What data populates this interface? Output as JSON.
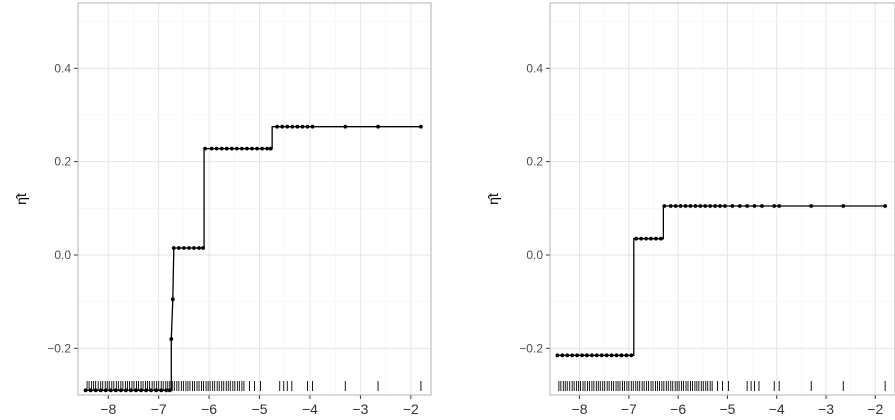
{
  "chart_data": [
    {
      "type": "line",
      "title": "",
      "xlabel": "",
      "ylabel": "η̂t",
      "xlim": [
        -8.6,
        -1.6
      ],
      "ylim": [
        -0.3,
        0.54
      ],
      "xticks": [
        -8,
        -7,
        -6,
        -5,
        -4,
        -3,
        -2
      ],
      "yticks": [
        -0.2,
        0.0,
        0.2,
        0.4
      ],
      "xtick_labels": [
        "−8",
        "−7",
        "−6",
        "−5",
        "−4",
        "−3",
        "−2"
      ],
      "ytick_labels": [
        "−0.2",
        "0.0",
        "0.2",
        "0.4"
      ],
      "grid": true,
      "series": [
        {
          "step_points": [
            {
              "x": -8.45,
              "y": -0.29
            },
            {
              "x": -6.75,
              "y": -0.29
            },
            {
              "x": -6.75,
              "y": -0.18
            },
            {
              "x": -6.72,
              "y": -0.095
            },
            {
              "x": -6.7,
              "y": 0.015
            },
            {
              "x": -6.1,
              "y": 0.015
            },
            {
              "x": -6.1,
              "y": 0.228
            },
            {
              "x": -4.75,
              "y": 0.228
            },
            {
              "x": -4.75,
              "y": 0.275
            },
            {
              "x": -1.8,
              "y": 0.275
            }
          ],
          "points": [
            {
              "x": -8.45,
              "y": -0.29
            },
            {
              "x": -8.35,
              "y": -0.29
            },
            {
              "x": -8.25,
              "y": -0.29
            },
            {
              "x": -8.15,
              "y": -0.29
            },
            {
              "x": -8.05,
              "y": -0.29
            },
            {
              "x": -7.95,
              "y": -0.29
            },
            {
              "x": -7.85,
              "y": -0.29
            },
            {
              "x": -7.75,
              "y": -0.29
            },
            {
              "x": -7.65,
              "y": -0.29
            },
            {
              "x": -7.55,
              "y": -0.29
            },
            {
              "x": -7.45,
              "y": -0.29
            },
            {
              "x": -7.35,
              "y": -0.29
            },
            {
              "x": -7.25,
              "y": -0.29
            },
            {
              "x": -7.15,
              "y": -0.29
            },
            {
              "x": -7.05,
              "y": -0.29
            },
            {
              "x": -6.95,
              "y": -0.29
            },
            {
              "x": -6.85,
              "y": -0.29
            },
            {
              "x": -6.78,
              "y": -0.29
            },
            {
              "x": -6.75,
              "y": -0.18
            },
            {
              "x": -6.72,
              "y": -0.095
            },
            {
              "x": -6.7,
              "y": 0.015
            },
            {
              "x": -6.6,
              "y": 0.015
            },
            {
              "x": -6.5,
              "y": 0.015
            },
            {
              "x": -6.4,
              "y": 0.015
            },
            {
              "x": -6.3,
              "y": 0.015
            },
            {
              "x": -6.2,
              "y": 0.015
            },
            {
              "x": -6.12,
              "y": 0.015
            },
            {
              "x": -6.08,
              "y": 0.228
            },
            {
              "x": -5.95,
              "y": 0.228
            },
            {
              "x": -5.85,
              "y": 0.228
            },
            {
              "x": -5.75,
              "y": 0.228
            },
            {
              "x": -5.65,
              "y": 0.228
            },
            {
              "x": -5.55,
              "y": 0.228
            },
            {
              "x": -5.45,
              "y": 0.228
            },
            {
              "x": -5.35,
              "y": 0.228
            },
            {
              "x": -5.25,
              "y": 0.228
            },
            {
              "x": -5.15,
              "y": 0.228
            },
            {
              "x": -5.05,
              "y": 0.228
            },
            {
              "x": -4.95,
              "y": 0.228
            },
            {
              "x": -4.85,
              "y": 0.228
            },
            {
              "x": -4.78,
              "y": 0.228
            },
            {
              "x": -4.65,
              "y": 0.275
            },
            {
              "x": -4.55,
              "y": 0.275
            },
            {
              "x": -4.45,
              "y": 0.275
            },
            {
              "x": -4.35,
              "y": 0.275
            },
            {
              "x": -4.25,
              "y": 0.275
            },
            {
              "x": -4.15,
              "y": 0.275
            },
            {
              "x": -4.05,
              "y": 0.275
            },
            {
              "x": -3.95,
              "y": 0.275
            },
            {
              "x": -3.3,
              "y": 0.275
            },
            {
              "x": -2.65,
              "y": 0.275
            },
            {
              "x": -1.8,
              "y": 0.275
            }
          ]
        }
      ],
      "rug_x": [
        -8.42,
        -8.38,
        -8.33,
        -8.29,
        -8.25,
        -8.2,
        -8.15,
        -8.11,
        -8.06,
        -8.02,
        -7.98,
        -7.93,
        -7.89,
        -7.84,
        -7.8,
        -7.75,
        -7.71,
        -7.66,
        -7.62,
        -7.58,
        -7.53,
        -7.49,
        -7.44,
        -7.4,
        -7.35,
        -7.31,
        -7.26,
        -7.22,
        -7.18,
        -7.13,
        -7.09,
        -7.04,
        -7.0,
        -6.95,
        -6.91,
        -6.86,
        -6.82,
        -6.78,
        -6.73,
        -6.69,
        -6.64,
        -6.6,
        -6.55,
        -6.51,
        -6.46,
        -6.42,
        -6.38,
        -6.33,
        -6.29,
        -6.24,
        -6.2,
        -6.15,
        -6.11,
        -6.06,
        -6.02,
        -5.98,
        -5.93,
        -5.89,
        -5.84,
        -5.8,
        -5.75,
        -5.71,
        -5.66,
        -5.62,
        -5.58,
        -5.53,
        -5.49,
        -5.44,
        -5.4,
        -5.35,
        -5.31,
        -5.2,
        -5.1,
        -4.98,
        -4.6,
        -4.52,
        -4.45,
        -4.36,
        -4.05,
        -3.95,
        -3.3,
        -2.65,
        -1.8
      ]
    },
    {
      "type": "line",
      "title": "",
      "xlabel": "",
      "ylabel": "η̂t",
      "xlim": [
        -8.6,
        -1.6
      ],
      "ylim": [
        -0.3,
        0.54
      ],
      "xticks": [
        -8,
        -7,
        -6,
        -5,
        -4,
        -3,
        -2
      ],
      "yticks": [
        -0.2,
        0.0,
        0.2,
        0.4
      ],
      "xtick_labels": [
        "−8",
        "−7",
        "−6",
        "−5",
        "−4",
        "−3",
        "−2"
      ],
      "ytick_labels": [
        "−0.2",
        "0.0",
        "0.2",
        "0.4"
      ],
      "grid": true,
      "series": [
        {
          "step_points": [
            {
              "x": -8.45,
              "y": -0.215
            },
            {
              "x": -6.9,
              "y": -0.215
            },
            {
              "x": -6.9,
              "y": 0.035
            },
            {
              "x": -6.3,
              "y": 0.035
            },
            {
              "x": -6.3,
              "y": 0.105
            },
            {
              "x": -1.8,
              "y": 0.105
            }
          ],
          "points": [
            {
              "x": -8.45,
              "y": -0.215
            },
            {
              "x": -8.35,
              "y": -0.215
            },
            {
              "x": -8.25,
              "y": -0.215
            },
            {
              "x": -8.15,
              "y": -0.215
            },
            {
              "x": -8.05,
              "y": -0.215
            },
            {
              "x": -7.95,
              "y": -0.215
            },
            {
              "x": -7.85,
              "y": -0.215
            },
            {
              "x": -7.75,
              "y": -0.215
            },
            {
              "x": -7.65,
              "y": -0.215
            },
            {
              "x": -7.55,
              "y": -0.215
            },
            {
              "x": -7.45,
              "y": -0.215
            },
            {
              "x": -7.35,
              "y": -0.215
            },
            {
              "x": -7.25,
              "y": -0.215
            },
            {
              "x": -7.15,
              "y": -0.215
            },
            {
              "x": -7.05,
              "y": -0.215
            },
            {
              "x": -6.95,
              "y": -0.215
            },
            {
              "x": -6.85,
              "y": 0.035
            },
            {
              "x": -6.75,
              "y": 0.035
            },
            {
              "x": -6.65,
              "y": 0.035
            },
            {
              "x": -6.55,
              "y": 0.035
            },
            {
              "x": -6.45,
              "y": 0.035
            },
            {
              "x": -6.35,
              "y": 0.035
            },
            {
              "x": -6.28,
              "y": 0.105
            },
            {
              "x": -6.15,
              "y": 0.105
            },
            {
              "x": -6.05,
              "y": 0.105
            },
            {
              "x": -5.95,
              "y": 0.105
            },
            {
              "x": -5.85,
              "y": 0.105
            },
            {
              "x": -5.75,
              "y": 0.105
            },
            {
              "x": -5.65,
              "y": 0.105
            },
            {
              "x": -5.55,
              "y": 0.105
            },
            {
              "x": -5.45,
              "y": 0.105
            },
            {
              "x": -5.35,
              "y": 0.105
            },
            {
              "x": -5.25,
              "y": 0.105
            },
            {
              "x": -5.15,
              "y": 0.105
            },
            {
              "x": -5.05,
              "y": 0.105
            },
            {
              "x": -4.9,
              "y": 0.105
            },
            {
              "x": -4.75,
              "y": 0.105
            },
            {
              "x": -4.6,
              "y": 0.105
            },
            {
              "x": -4.45,
              "y": 0.105
            },
            {
              "x": -4.3,
              "y": 0.105
            },
            {
              "x": -4.05,
              "y": 0.105
            },
            {
              "x": -3.95,
              "y": 0.105
            },
            {
              "x": -3.3,
              "y": 0.105
            },
            {
              "x": -2.65,
              "y": 0.105
            },
            {
              "x": -1.8,
              "y": 0.105
            }
          ]
        }
      ],
      "rug_x": [
        -8.42,
        -8.38,
        -8.33,
        -8.29,
        -8.25,
        -8.2,
        -8.15,
        -8.11,
        -8.06,
        -8.02,
        -7.98,
        -7.93,
        -7.89,
        -7.84,
        -7.8,
        -7.75,
        -7.71,
        -7.66,
        -7.62,
        -7.58,
        -7.53,
        -7.49,
        -7.44,
        -7.4,
        -7.35,
        -7.31,
        -7.26,
        -7.22,
        -7.18,
        -7.13,
        -7.09,
        -7.04,
        -7.0,
        -6.95,
        -6.91,
        -6.86,
        -6.82,
        -6.78,
        -6.73,
        -6.69,
        -6.64,
        -6.6,
        -6.55,
        -6.51,
        -6.46,
        -6.42,
        -6.38,
        -6.33,
        -6.29,
        -6.24,
        -6.2,
        -6.15,
        -6.11,
        -6.06,
        -6.02,
        -5.98,
        -5.93,
        -5.89,
        -5.84,
        -5.8,
        -5.75,
        -5.71,
        -5.66,
        -5.62,
        -5.58,
        -5.53,
        -5.49,
        -5.44,
        -5.4,
        -5.35,
        -5.31,
        -5.2,
        -5.1,
        -4.98,
        -4.6,
        -4.52,
        -4.45,
        -4.36,
        -4.05,
        -3.95,
        -3.3,
        -2.65,
        -1.8
      ]
    }
  ],
  "style": {
    "panel_border": "#b3b3b3",
    "grid_major": "#e5e5e5",
    "grid_minor": "#f2f2f2",
    "line_color": "#000000",
    "text_color": "#4d4d4d"
  }
}
